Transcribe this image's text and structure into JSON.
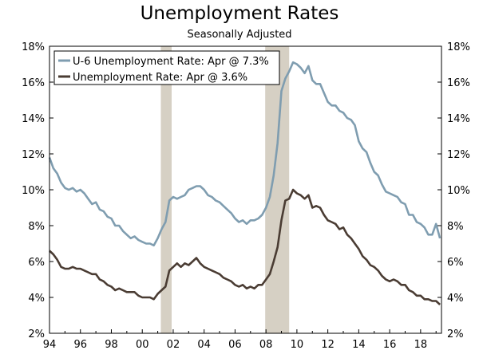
{
  "chart_data": {
    "type": "line",
    "title": "Unemployment Rates",
    "subtitle": "Seasonally Adjusted",
    "xlim": [
      1994.0,
      2019.35
    ],
    "ylim": [
      2,
      18
    ],
    "y_ticks": [
      2,
      4,
      6,
      8,
      10,
      12,
      14,
      16,
      18
    ],
    "y_tick_labels": [
      "2%",
      "4%",
      "6%",
      "8%",
      "10%",
      "12%",
      "14%",
      "16%",
      "18%"
    ],
    "x_ticks": [
      1994,
      1996,
      1998,
      2000,
      2002,
      2004,
      2006,
      2008,
      2010,
      2012,
      2014,
      2016,
      2018
    ],
    "x_tick_labels": [
      "94",
      "96",
      "98",
      "00",
      "02",
      "04",
      "06",
      "08",
      "10",
      "12",
      "14",
      "16",
      "18"
    ],
    "grid": false,
    "dual_axis": true,
    "legend_position": "top-left",
    "recessions": [
      [
        2001.2,
        2001.9
      ],
      [
        2007.95,
        2009.5
      ]
    ],
    "recession_color": "#d6d0c4",
    "series": [
      {
        "name": "U-6 Unemployment Rate: Apr @ 7.3%",
        "color": "#7f9db0",
        "x": [
          1994.0,
          1994.25,
          1994.5,
          1994.75,
          1995.0,
          1995.25,
          1995.5,
          1995.75,
          1996.0,
          1996.25,
          1996.5,
          1996.75,
          1997.0,
          1997.25,
          1997.5,
          1997.75,
          1998.0,
          1998.25,
          1998.5,
          1998.75,
          1999.0,
          1999.25,
          1999.5,
          1999.75,
          2000.0,
          2000.25,
          2000.5,
          2000.75,
          2001.0,
          2001.25,
          2001.5,
          2001.75,
          2002.0,
          2002.25,
          2002.5,
          2002.75,
          2003.0,
          2003.25,
          2003.5,
          2003.75,
          2004.0,
          2004.25,
          2004.5,
          2004.75,
          2005.0,
          2005.25,
          2005.5,
          2005.75,
          2006.0,
          2006.25,
          2006.5,
          2006.75,
          2007.0,
          2007.25,
          2007.5,
          2007.75,
          2008.0,
          2008.25,
          2008.5,
          2008.75,
          2009.0,
          2009.25,
          2009.5,
          2009.75,
          2010.0,
          2010.25,
          2010.5,
          2010.75,
          2011.0,
          2011.25,
          2011.5,
          2011.75,
          2012.0,
          2012.25,
          2012.5,
          2012.75,
          2013.0,
          2013.25,
          2013.5,
          2013.75,
          2014.0,
          2014.25,
          2014.5,
          2014.75,
          2015.0,
          2015.25,
          2015.5,
          2015.75,
          2016.0,
          2016.25,
          2016.5,
          2016.75,
          2017.0,
          2017.25,
          2017.5,
          2017.75,
          2018.0,
          2018.25,
          2018.5,
          2018.75,
          2019.0,
          2019.25
        ],
        "values": [
          11.8,
          11.2,
          10.9,
          10.4,
          10.1,
          10.0,
          10.1,
          9.9,
          10.0,
          9.8,
          9.5,
          9.2,
          9.3,
          8.9,
          8.8,
          8.5,
          8.4,
          8.0,
          8.0,
          7.7,
          7.5,
          7.3,
          7.4,
          7.2,
          7.1,
          7.0,
          7.0,
          6.9,
          7.3,
          7.8,
          8.2,
          9.4,
          9.6,
          9.5,
          9.6,
          9.7,
          10.0,
          10.1,
          10.2,
          10.2,
          10.0,
          9.7,
          9.6,
          9.4,
          9.3,
          9.1,
          8.9,
          8.7,
          8.4,
          8.2,
          8.3,
          8.1,
          8.3,
          8.3,
          8.4,
          8.6,
          9.0,
          9.6,
          10.8,
          12.6,
          15.5,
          16.2,
          16.6,
          17.1,
          17.0,
          16.8,
          16.5,
          16.9,
          16.1,
          15.9,
          15.9,
          15.4,
          14.9,
          14.7,
          14.7,
          14.4,
          14.3,
          14.0,
          13.9,
          13.6,
          12.7,
          12.3,
          12.1,
          11.5,
          11.0,
          10.8,
          10.3,
          9.9,
          9.8,
          9.7,
          9.6,
          9.3,
          9.2,
          8.6,
          8.6,
          8.2,
          8.1,
          7.9,
          7.5,
          7.5,
          8.1,
          7.3
        ]
      },
      {
        "name": "Unemployment Rate: Apr @ 3.6%",
        "color": "#4a3c33",
        "x": [
          1994.0,
          1994.25,
          1994.5,
          1994.75,
          1995.0,
          1995.25,
          1995.5,
          1995.75,
          1996.0,
          1996.25,
          1996.5,
          1996.75,
          1997.0,
          1997.25,
          1997.5,
          1997.75,
          1998.0,
          1998.25,
          1998.5,
          1998.75,
          1999.0,
          1999.25,
          1999.5,
          1999.75,
          2000.0,
          2000.25,
          2000.5,
          2000.75,
          2001.0,
          2001.25,
          2001.5,
          2001.75,
          2002.0,
          2002.25,
          2002.5,
          2002.75,
          2003.0,
          2003.25,
          2003.5,
          2003.75,
          2004.0,
          2004.25,
          2004.5,
          2004.75,
          2005.0,
          2005.25,
          2005.5,
          2005.75,
          2006.0,
          2006.25,
          2006.5,
          2006.75,
          2007.0,
          2007.25,
          2007.5,
          2007.75,
          2008.0,
          2008.25,
          2008.5,
          2008.75,
          2009.0,
          2009.25,
          2009.5,
          2009.75,
          2010.0,
          2010.25,
          2010.5,
          2010.75,
          2011.0,
          2011.25,
          2011.5,
          2011.75,
          2012.0,
          2012.25,
          2012.5,
          2012.75,
          2013.0,
          2013.25,
          2013.5,
          2013.75,
          2014.0,
          2014.25,
          2014.5,
          2014.75,
          2015.0,
          2015.25,
          2015.5,
          2015.75,
          2016.0,
          2016.25,
          2016.5,
          2016.75,
          2017.0,
          2017.25,
          2017.5,
          2017.75,
          2018.0,
          2018.25,
          2018.5,
          2018.75,
          2019.0,
          2019.25
        ],
        "values": [
          6.6,
          6.4,
          6.1,
          5.7,
          5.6,
          5.6,
          5.7,
          5.6,
          5.6,
          5.5,
          5.4,
          5.3,
          5.3,
          5.0,
          4.9,
          4.7,
          4.6,
          4.4,
          4.5,
          4.4,
          4.3,
          4.3,
          4.3,
          4.1,
          4.0,
          4.0,
          4.0,
          3.9,
          4.2,
          4.4,
          4.6,
          5.5,
          5.7,
          5.9,
          5.7,
          5.9,
          5.8,
          6.0,
          6.2,
          5.9,
          5.7,
          5.6,
          5.5,
          5.4,
          5.3,
          5.1,
          5.0,
          4.9,
          4.7,
          4.6,
          4.7,
          4.5,
          4.6,
          4.5,
          4.7,
          4.7,
          5.0,
          5.3,
          6.0,
          6.8,
          8.3,
          9.4,
          9.5,
          10.0,
          9.8,
          9.7,
          9.5,
          9.7,
          9.0,
          9.1,
          9.0,
          8.6,
          8.3,
          8.2,
          8.1,
          7.8,
          7.9,
          7.5,
          7.3,
          7.0,
          6.7,
          6.3,
          6.1,
          5.8,
          5.7,
          5.5,
          5.2,
          5.0,
          4.9,
          5.0,
          4.9,
          4.7,
          4.7,
          4.4,
          4.3,
          4.1,
          4.1,
          3.9,
          3.9,
          3.8,
          3.8,
          3.6
        ]
      }
    ]
  }
}
